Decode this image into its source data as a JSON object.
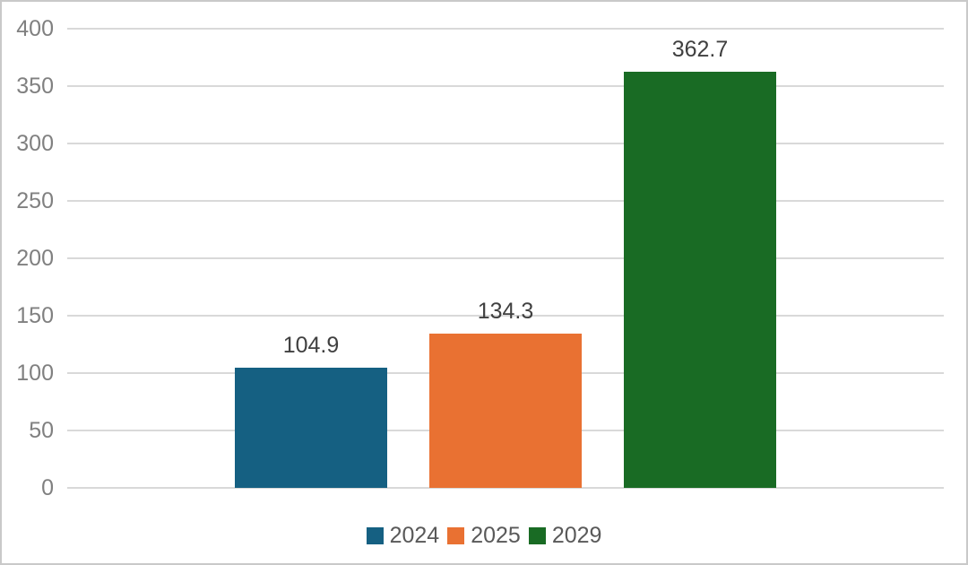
{
  "chart_data": {
    "type": "bar",
    "title": "",
    "categories": [
      "2024",
      "2025",
      "2029"
    ],
    "series": [
      {
        "name": "2024",
        "value": 104.9,
        "data_label": "104.9",
        "color": "#156082"
      },
      {
        "name": "2025",
        "value": 134.3,
        "data_label": "134.3",
        "color": "#E97132"
      },
      {
        "name": "2029",
        "value": 362.7,
        "data_label": "362.7",
        "color": "#196B24"
      }
    ],
    "xlabel": "",
    "ylabel": "",
    "ylim": [
      0,
      400
    ],
    "ytick_step": 50,
    "ytick_labels": [
      "0",
      "50",
      "100",
      "150",
      "200",
      "250",
      "300",
      "350",
      "400"
    ],
    "grid": true,
    "legend_position": "bottom",
    "legend_entries": [
      "2024",
      "2025",
      "2029"
    ]
  },
  "style": {
    "background_color": "#FFFFFF",
    "frame_border_color": "#C9C9C9",
    "gridline_color": "#D9D9D9",
    "axis_label_color": "#808080",
    "data_label_color": "#404040",
    "legend_text_color": "#595959"
  }
}
